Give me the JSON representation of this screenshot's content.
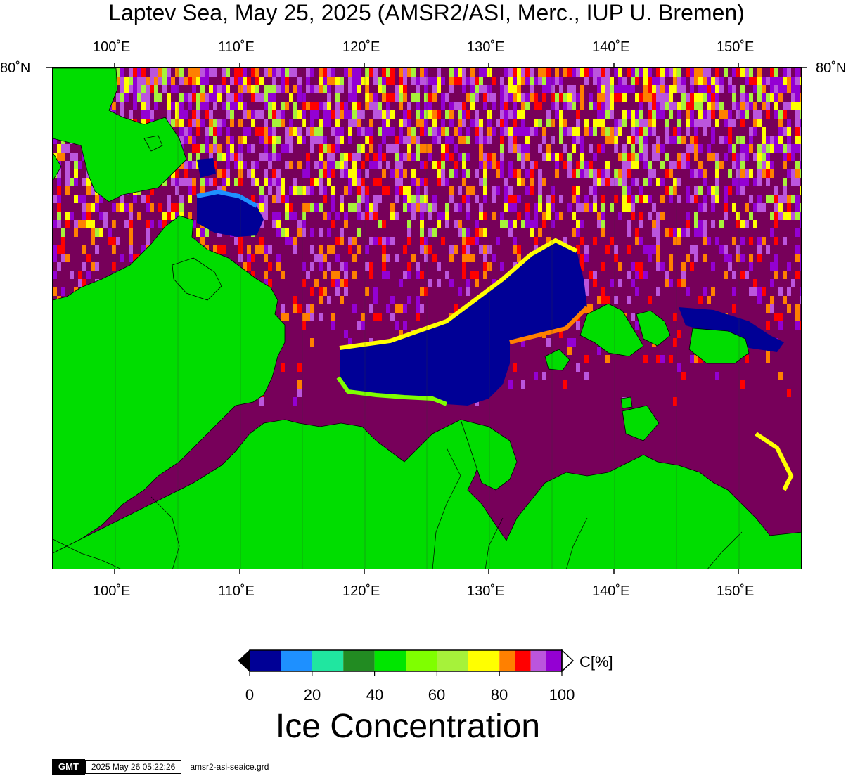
{
  "title": "Laptev Sea, May 25, 2025 (AMSR2/ASI, Merc., IUP U. Bremen)",
  "axes": {
    "lon_ticks": [
      "100˚E",
      "110˚E",
      "120˚E",
      "130˚E",
      "140˚E",
      "150˚E"
    ],
    "lat_ticks": [
      "80˚N"
    ]
  },
  "map": {
    "lon_range": [
      95,
      155
    ],
    "top_lat": "80˚N",
    "colors": {
      "land": "#00dd00",
      "full_ice": "#77005a",
      "open_water": "#000096"
    }
  },
  "colorbar": {
    "unit": "C[%]",
    "labels": [
      "0",
      "20",
      "40",
      "60",
      "80",
      "100"
    ],
    "bins": [
      {
        "from": 0,
        "to": 10,
        "color": "#000096"
      },
      {
        "from": 10,
        "to": 20,
        "color": "#1e90ff"
      },
      {
        "from": 20,
        "to": 30,
        "color": "#20e6a0"
      },
      {
        "from": 30,
        "to": 40,
        "color": "#228b22"
      },
      {
        "from": 40,
        "to": 50,
        "color": "#00e600"
      },
      {
        "from": 50,
        "to": 60,
        "color": "#7fff00"
      },
      {
        "from": 60,
        "to": 70,
        "color": "#a6f23a"
      },
      {
        "from": 70,
        "to": 80,
        "color": "#ffff00"
      },
      {
        "from": 80,
        "to": 85,
        "color": "#ff8000"
      },
      {
        "from": 85,
        "to": 90,
        "color": "#ff0000"
      },
      {
        "from": 90,
        "to": 95,
        "color": "#bb55dd"
      },
      {
        "from": 95,
        "to": 100,
        "color": "#9400d3"
      }
    ]
  },
  "legend_title": "Ice Concentration",
  "footer": {
    "logo": "GMT",
    "timestamp": "2025 May 26 05:22:26",
    "filename": "amsr2-asi-seaice.grd"
  }
}
